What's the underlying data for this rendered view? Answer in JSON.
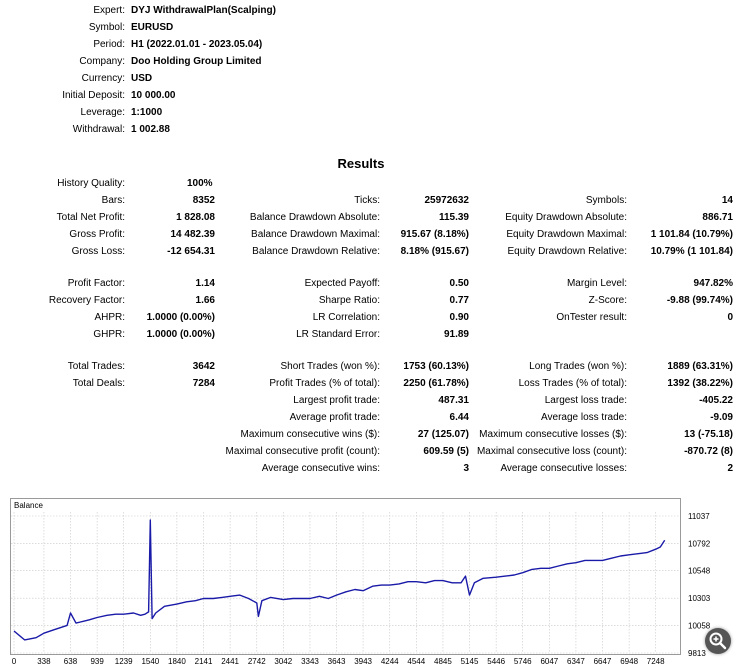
{
  "header": {
    "rows": [
      {
        "label": "Expert:",
        "value": "DYJ WithdrawalPlan(Scalping)"
      },
      {
        "label": "Symbol:",
        "value": "EURUSD"
      },
      {
        "label": "Period:",
        "value": "H1 (2022.01.01 - 2023.05.04)"
      },
      {
        "label": "Company:",
        "value": "Doo Holding Group Limited"
      },
      {
        "label": "Currency:",
        "value": "USD"
      },
      {
        "label": "Initial Deposit:",
        "value": "10 000.00"
      },
      {
        "label": "Leverage:",
        "value": "1:1000"
      },
      {
        "label": "Withdrawal:",
        "value": "1 002.88"
      }
    ]
  },
  "results_title": "Results",
  "results": {
    "col1": [
      {
        "label": "History Quality:",
        "value": "100%"
      },
      {
        "label": "Bars:",
        "value": "8352"
      },
      {
        "label": "Total Net Profit:",
        "value": "1 828.08"
      },
      {
        "label": "Gross Profit:",
        "value": "14 482.39"
      },
      {
        "label": "Gross Loss:",
        "value": "-12 654.31"
      },
      {
        "label": "Profit Factor:",
        "value": "1.14"
      },
      {
        "label": "Recovery Factor:",
        "value": "1.66"
      },
      {
        "label": "AHPR:",
        "value": "1.0000 (0.00%)"
      },
      {
        "label": "GHPR:",
        "value": "1.0000 (0.00%)"
      },
      {
        "label": "Total Trades:",
        "value": "3642"
      },
      {
        "label": "Total Deals:",
        "value": "7284"
      }
    ],
    "col2": [
      {
        "label": "Ticks:",
        "value": "25972632"
      },
      {
        "label": "Balance Drawdown Absolute:",
        "value": "115.39"
      },
      {
        "label": "Balance Drawdown Maximal:",
        "value": "915.67 (8.18%)"
      },
      {
        "label": "Balance Drawdown Relative:",
        "value": "8.18% (915.67)"
      },
      {
        "label": "Expected Payoff:",
        "value": "0.50"
      },
      {
        "label": "Sharpe Ratio:",
        "value": "0.77"
      },
      {
        "label": "LR Correlation:",
        "value": "0.90"
      },
      {
        "label": "LR Standard Error:",
        "value": "91.89"
      },
      {
        "label": "Short Trades (won %):",
        "value": "1753 (60.13%)"
      },
      {
        "label": "Profit Trades (% of total):",
        "value": "2250 (61.78%)"
      },
      {
        "label": "Largest profit trade:",
        "value": "487.31"
      },
      {
        "label": "Average profit trade:",
        "value": "6.44"
      },
      {
        "label": "Maximum consecutive wins ($):",
        "value": "27 (125.07)"
      },
      {
        "label": "Maximal consecutive profit (count):",
        "value": "609.59 (5)"
      },
      {
        "label": "Average consecutive wins:",
        "value": "3"
      }
    ],
    "col3": [
      {
        "label": "Symbols:",
        "value": "14"
      },
      {
        "label": "Equity Drawdown Absolute:",
        "value": "886.71"
      },
      {
        "label": "Equity Drawdown Maximal:",
        "value": "1 101.84 (10.79%)"
      },
      {
        "label": "Equity Drawdown Relative:",
        "value": "10.79% (1 101.84)"
      },
      {
        "label": "Margin Level:",
        "value": "947.82%"
      },
      {
        "label": "Z-Score:",
        "value": "-9.88 (99.74%)"
      },
      {
        "label": "OnTester result:",
        "value": "0"
      },
      {
        "label": "Long Trades (won %):",
        "value": "1889 (63.31%)"
      },
      {
        "label": "Loss Trades (% of total):",
        "value": "1392 (38.22%)"
      },
      {
        "label": "Largest loss trade:",
        "value": "-405.22"
      },
      {
        "label": "Average loss trade:",
        "value": "-9.09"
      },
      {
        "label": "Maximum consecutive losses ($):",
        "value": "13 (-75.18)"
      },
      {
        "label": "Maximal consecutive loss (count):",
        "value": "-870.72 (8)"
      },
      {
        "label": "Average consecutive losses:",
        "value": "2"
      }
    ]
  },
  "chart_data": {
    "type": "line",
    "title": "Balance",
    "x_ticks": [
      "0",
      "338",
      "638",
      "939",
      "1239",
      "1540",
      "1840",
      "2141",
      "2441",
      "2742",
      "3042",
      "3343",
      "3643",
      "3943",
      "4244",
      "4544",
      "4845",
      "5145",
      "5446",
      "5746",
      "6047",
      "6347",
      "6647",
      "6948",
      "7248"
    ],
    "y_ticks": [
      "11037",
      "10792",
      "10548",
      "10303",
      "10058",
      "9813"
    ],
    "xlim": [
      0,
      7500
    ],
    "ylim": [
      9813,
      11037
    ],
    "grid": true,
    "series": [
      {
        "color": "#1a1aa8",
        "x": [
          0,
          120,
          250,
          338,
          450,
          600,
          638,
          700,
          750,
          800,
          850,
          939,
          1050,
          1150,
          1239,
          1350,
          1430,
          1480,
          1520,
          1540,
          1560,
          1600,
          1700,
          1840,
          1950,
          2050,
          2141,
          2250,
          2350,
          2441,
          2550,
          2650,
          2742,
          2760,
          2800,
          2900,
          3042,
          3150,
          3250,
          3343,
          3450,
          3550,
          3643,
          3750,
          3850,
          3943,
          4050,
          4150,
          4244,
          4350,
          4450,
          4544,
          4650,
          4750,
          4845,
          4950,
          5050,
          5100,
          5145,
          5200,
          5300,
          5446,
          5550,
          5650,
          5746,
          5850,
          5950,
          6047,
          6150,
          6250,
          6347,
          6450,
          6550,
          6647,
          6750,
          6850,
          6948,
          7050,
          7150,
          7248,
          7300,
          7350
        ],
        "y": [
          10010,
          9930,
          9950,
          9990,
          10020,
          10060,
          10170,
          10080,
          10090,
          10100,
          10110,
          10130,
          10150,
          10160,
          10160,
          10170,
          10150,
          10160,
          10180,
          11000,
          10120,
          10170,
          10230,
          10250,
          10270,
          10280,
          10300,
          10300,
          10310,
          10320,
          10330,
          10300,
          10260,
          10140,
          10280,
          10310,
          10290,
          10300,
          10300,
          10300,
          10320,
          10300,
          10330,
          10360,
          10380,
          10370,
          10410,
          10420,
          10420,
          10430,
          10450,
          10450,
          10440,
          10460,
          10460,
          10440,
          10440,
          10500,
          10330,
          10440,
          10480,
          10490,
          10500,
          10510,
          10530,
          10560,
          10570,
          10570,
          10590,
          10610,
          10620,
          10640,
          10640,
          10640,
          10660,
          10680,
          10690,
          10700,
          10710,
          10740,
          10760,
          10820
        ]
      }
    ]
  },
  "icons": {
    "zoom": "zoom-magnifier-icon"
  }
}
